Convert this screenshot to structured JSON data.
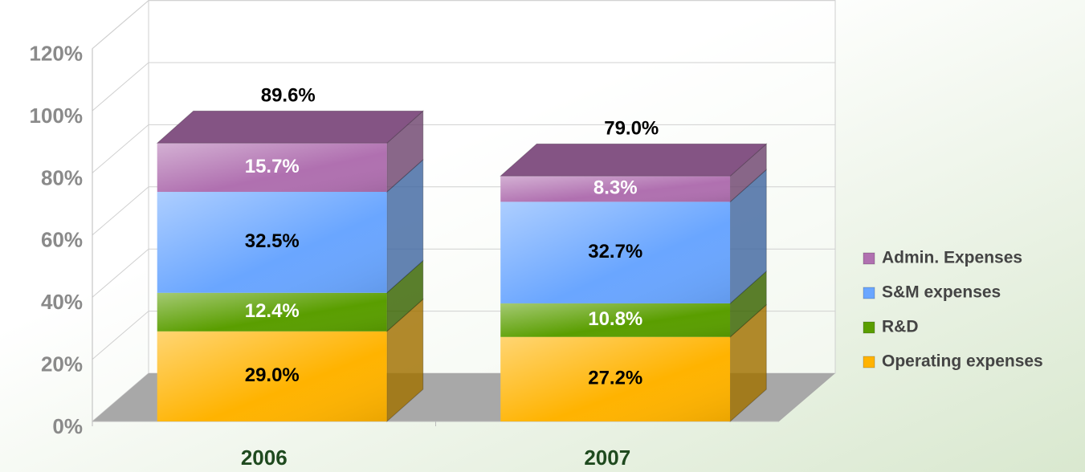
{
  "chart_data": {
    "type": "bar3d_stacked",
    "categories": [
      "2006",
      "2007"
    ],
    "series": [
      {
        "name": "Operating expenses",
        "color": "#ffb300",
        "label_color": "#000000",
        "values": [
          29.0,
          27.2
        ],
        "value_labels": [
          "29.0%",
          "27.2%"
        ]
      },
      {
        "name": "R&D",
        "color": "#5a9e00",
        "label_color": "#ffffff",
        "values": [
          12.4,
          10.8
        ],
        "value_labels": [
          "12.4%",
          "10.8%"
        ]
      },
      {
        "name": "S&M expenses",
        "color": "#6aa6ff",
        "label_color": "#000000",
        "values": [
          32.5,
          32.7
        ],
        "value_labels": [
          "32.5%",
          "32.7%"
        ]
      },
      {
        "name": "Admin. Expenses",
        "color": "#b070b0",
        "label_color": "#ffffff",
        "values": [
          15.7,
          8.3
        ],
        "value_labels": [
          "15.7%",
          "8.3%"
        ]
      }
    ],
    "totals": [
      89.6,
      79.0
    ],
    "total_labels": [
      "89.6%",
      "79.0%"
    ],
    "ylim": [
      0,
      120
    ],
    "yticks": [
      {
        "value": 0,
        "label": "0%"
      },
      {
        "value": 20,
        "label": "20%"
      },
      {
        "value": 40,
        "label": "40%"
      },
      {
        "value": 60,
        "label": "60%"
      },
      {
        "value": 80,
        "label": "80%"
      },
      {
        "value": 100,
        "label": "100%"
      },
      {
        "value": 120,
        "label": "120%"
      }
    ],
    "grid": true,
    "legend": "right"
  }
}
